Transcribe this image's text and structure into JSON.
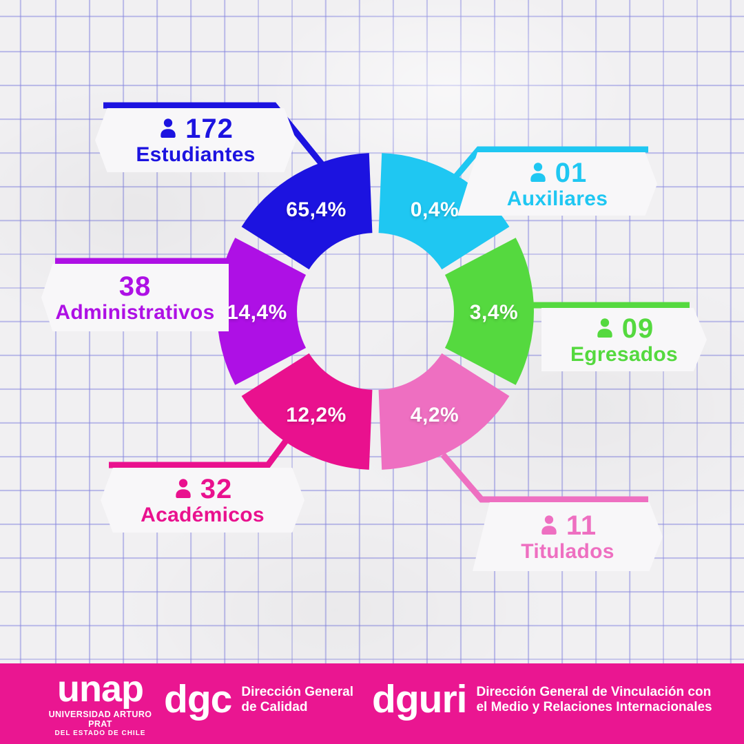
{
  "chart": {
    "type": "donut",
    "segments": [
      {
        "id": "auxiliares",
        "label": "Auxiliares",
        "count": "01",
        "pct": "0,4%",
        "color": "#1fc7f2",
        "icon": true
      },
      {
        "id": "egresados",
        "label": "Egresados",
        "count": "09",
        "pct": "3,4%",
        "color": "#55d93f",
        "icon": true
      },
      {
        "id": "titulados",
        "label": "Titulados",
        "count": "11",
        "pct": "4,2%",
        "color": "#ee6fc1",
        "icon": true
      },
      {
        "id": "academicos",
        "label": "Académicos",
        "count": "32",
        "pct": "12,2%",
        "color": "#e9118e",
        "icon": true
      },
      {
        "id": "administrativos",
        "label": "Administrativos",
        "count": "38",
        "pct": "14,4%",
        "color": "#ae10e5",
        "icon": false
      },
      {
        "id": "estudiantes",
        "label": "Estudiantes",
        "count": "172",
        "pct": "65,4%",
        "color": "#1c13e0",
        "icon": true
      }
    ]
  },
  "chart_data": {
    "type": "pie",
    "subtype": "donut",
    "categories": [
      "Auxiliares",
      "Egresados",
      "Titulados",
      "Académicos",
      "Administrativos",
      "Estudiantes"
    ],
    "values": [
      0.4,
      3.4,
      4.2,
      12.2,
      14.4,
      65.4
    ],
    "counts": [
      1,
      9,
      11,
      32,
      38,
      172
    ],
    "value_labels": [
      "0,4%",
      "3,4%",
      "4,2%",
      "12,2%",
      "14,4%",
      "65,4%"
    ],
    "colors": [
      "#1fc7f2",
      "#55d93f",
      "#ee6fc1",
      "#e9118e",
      "#ae10e5",
      "#1c13e0"
    ],
    "title": "",
    "legend_position": "callout-labels",
    "note": "donut drawn as six equal 60-degree segments clockwise from top; labels show true percentages"
  },
  "colors": {
    "paper": "#f1f0f2",
    "grid": "rgba(134,134,222,0.5)",
    "footer_bg": "#ea1691",
    "card_bg": "#f8f7f9"
  },
  "footer": {
    "unap": {
      "wordmark": "unap",
      "line1": "UNIVERSIDAD ARTURO PRAT",
      "line2": "DEL ESTADO DE CHILE"
    },
    "dgc": {
      "wordmark": "dgc",
      "line1": "Dirección General",
      "line2": "de Calidad"
    },
    "dguri": {
      "wordmark": "dguri",
      "line1": "Dirección General de Vinculación con",
      "line2": "el Medio y Relaciones Internacionales"
    }
  }
}
